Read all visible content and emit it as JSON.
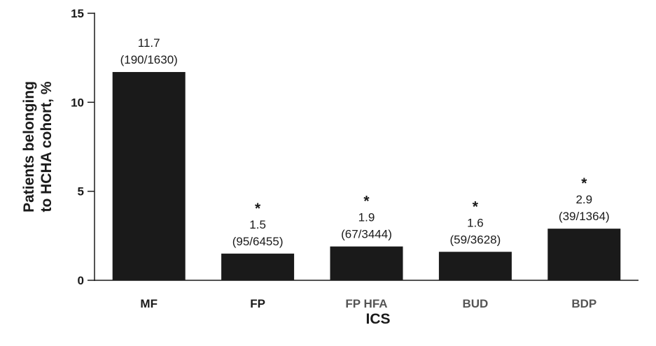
{
  "chart_data": {
    "type": "bar",
    "categories": [
      "MF",
      "FP",
      "FP HFA",
      "BUD",
      "BDP"
    ],
    "category_label_colors": [
      "#1a1a1a",
      "#1a1a1a",
      "#555555",
      "#555555",
      "#555555"
    ],
    "values": [
      11.7,
      1.5,
      1.9,
      1.6,
      2.9
    ],
    "value_labels": [
      "11.7",
      "1.5",
      "1.9",
      "1.6",
      "2.9"
    ],
    "count_labels": [
      "(190/1630)",
      "(95/6455)",
      "(67/3444)",
      "(59/3628)",
      "(39/1364)"
    ],
    "significance_markers": [
      "",
      "*",
      "*",
      "*",
      "*"
    ],
    "bar_color": "#1a1a1a",
    "xlabel": "ICS",
    "ylabel_lines": [
      "Patients belonging",
      "to HCHA cohort, %"
    ],
    "ylim": [
      0,
      15
    ],
    "yticks": [
      0,
      5,
      10,
      15
    ],
    "ytick_labels": [
      "0",
      "5",
      "10",
      "15"
    ],
    "grid": false,
    "legend": "none"
  }
}
